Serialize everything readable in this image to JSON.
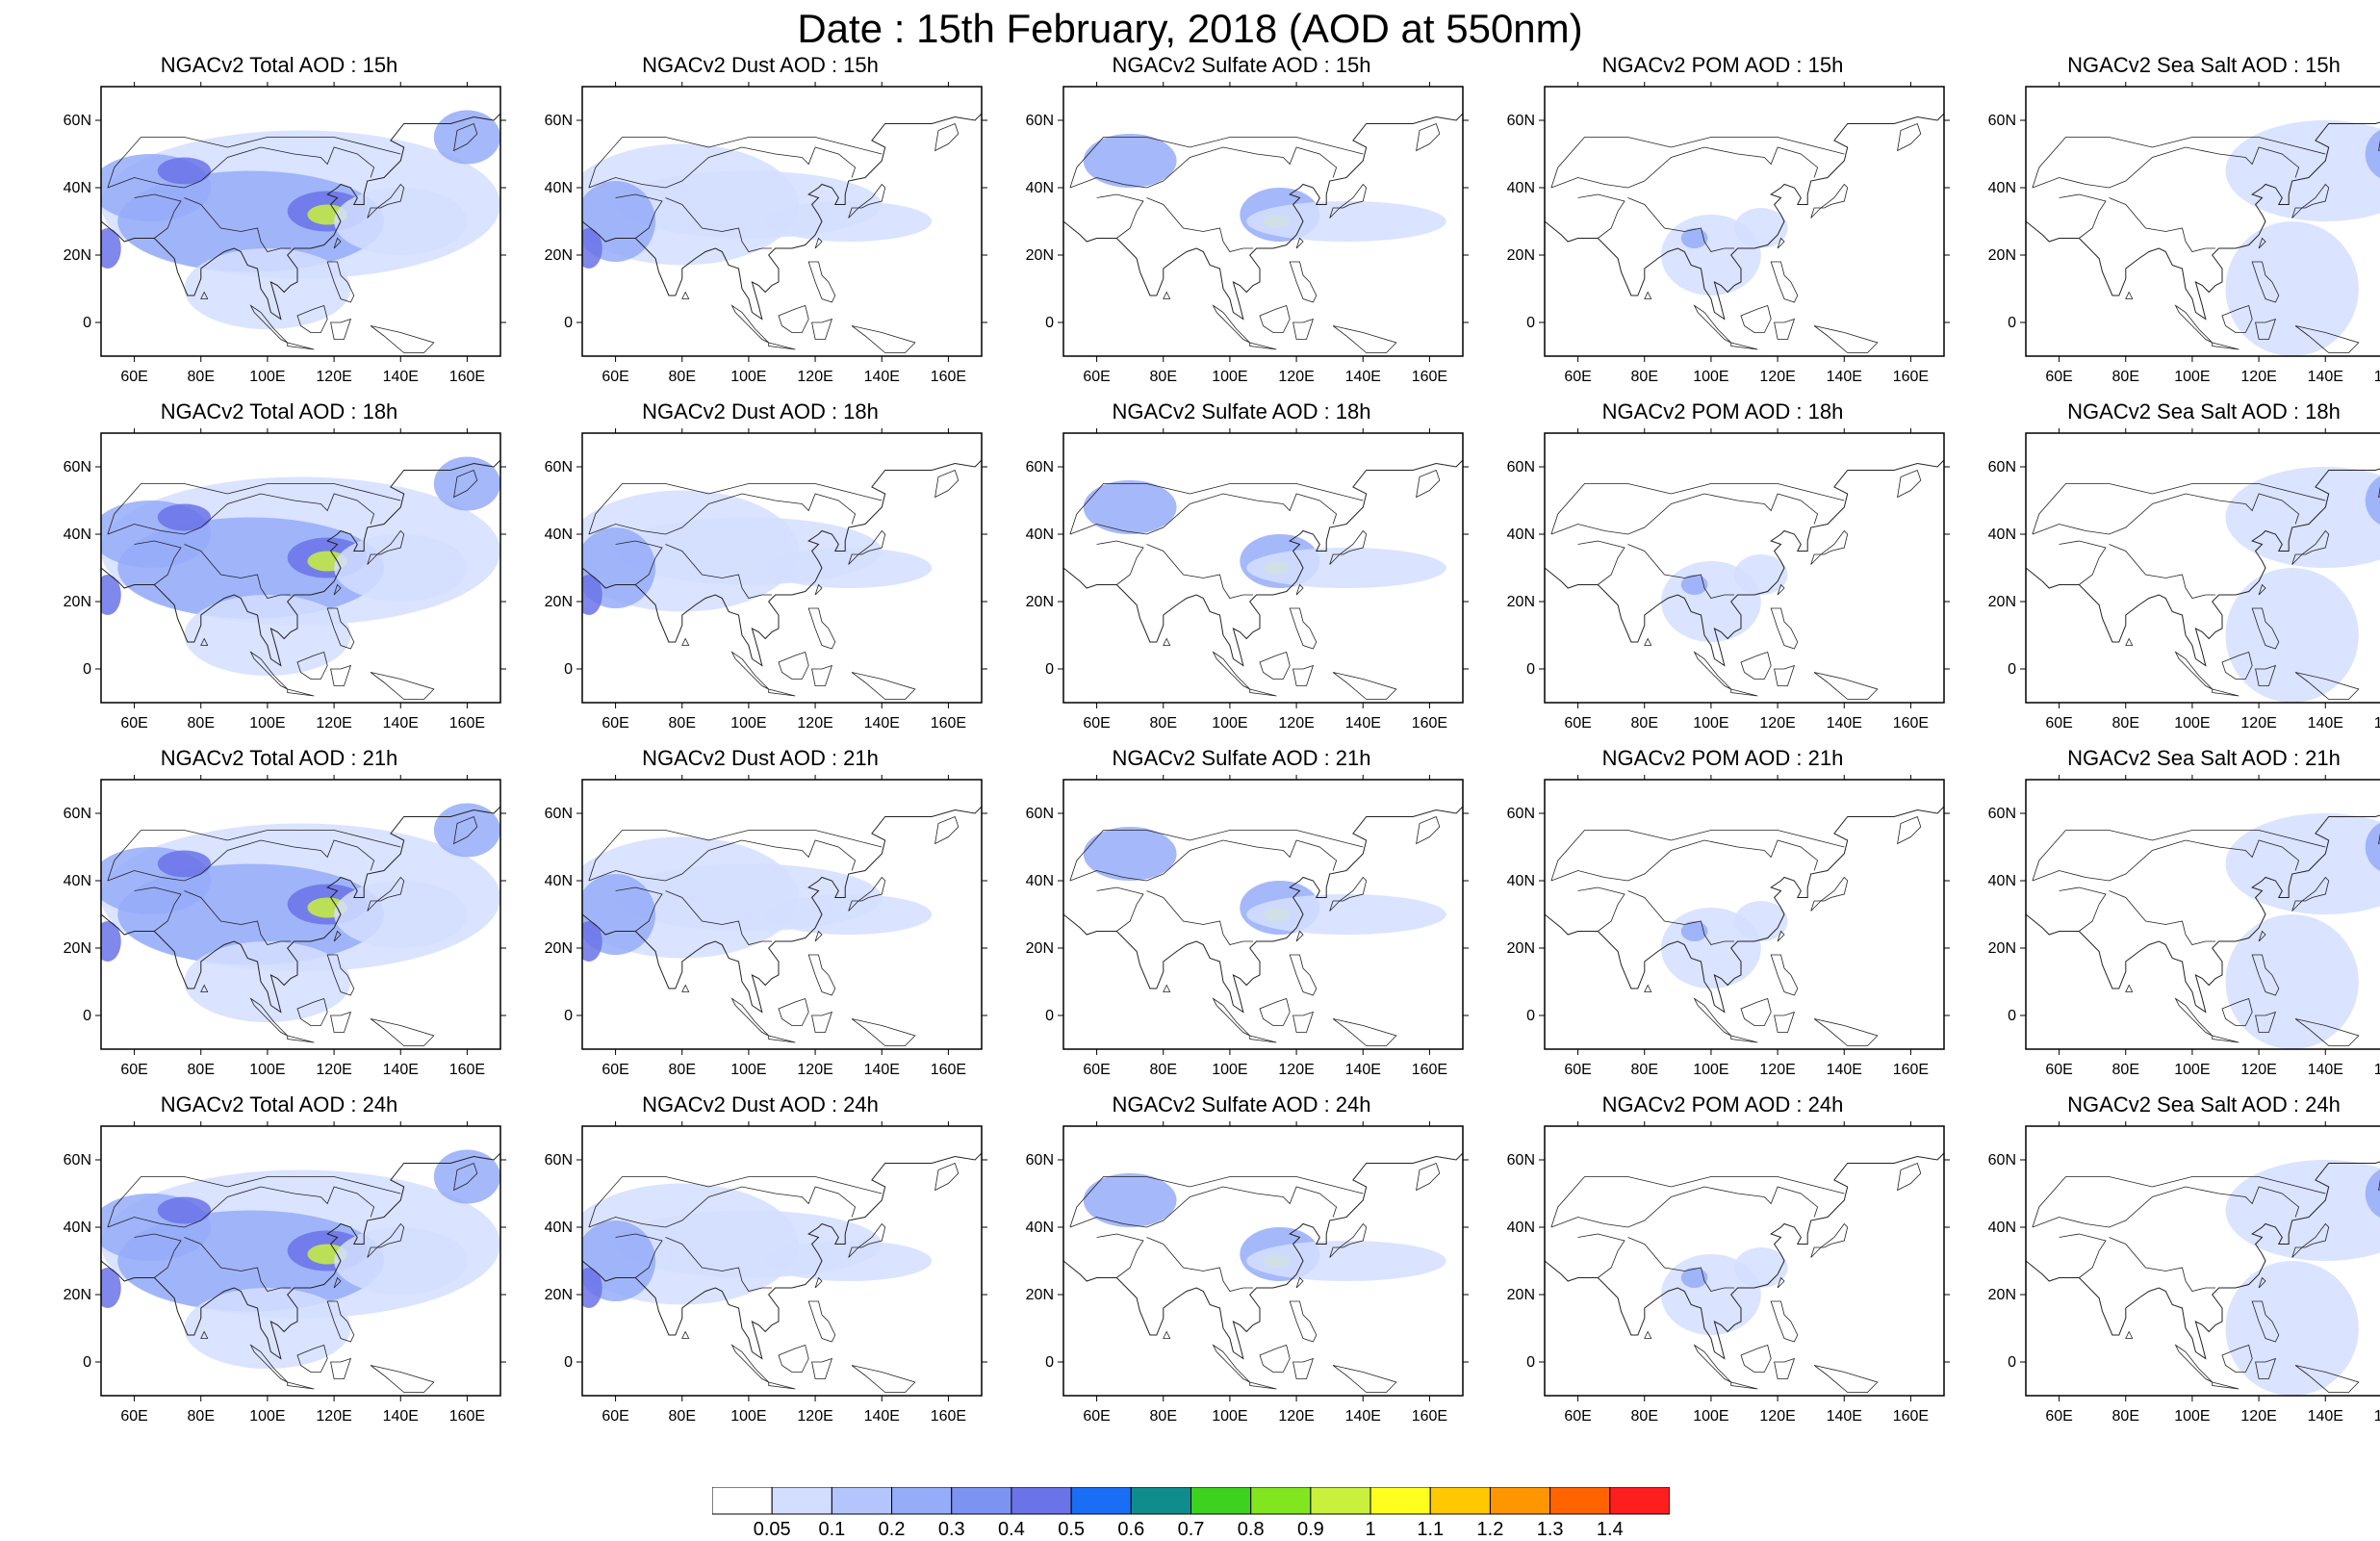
{
  "title": "Date : 15th February, 2018 (AOD at 550nm)",
  "species": [
    "Total",
    "Dust",
    "Sulfate",
    "POM",
    "Sea Salt"
  ],
  "times": [
    "15h",
    "18h",
    "21h",
    "24h"
  ],
  "panels": [
    [
      "NGACv2 Total AOD : 15h",
      "NGACv2 Dust AOD : 15h",
      "NGACv2 Sulfate AOD : 15h",
      "NGACv2 POM AOD : 15h",
      "NGACv2 Sea Salt AOD : 15h"
    ],
    [
      "NGACv2 Total AOD : 18h",
      "NGACv2 Dust AOD : 18h",
      "NGACv2 Sulfate AOD : 18h",
      "NGACv2 POM AOD : 18h",
      "NGACv2 Sea Salt AOD : 18h"
    ],
    [
      "NGACv2 Total AOD : 21h",
      "NGACv2 Dust AOD : 21h",
      "NGACv2 Sulfate AOD : 21h",
      "NGACv2 POM AOD : 21h",
      "NGACv2 Sea Salt AOD : 21h"
    ],
    [
      "NGACv2 Total AOD : 24h",
      "NGACv2 Dust AOD : 24h",
      "NGACv2 Sulfate AOD : 24h",
      "NGACv2 POM AOD : 24h",
      "NGACv2 Sea Salt  AOD : 24h"
    ]
  ],
  "axes": {
    "lon_ticks": [
      "60E",
      "80E",
      "100E",
      "120E",
      "140E",
      "160E"
    ],
    "lat_ticks": [
      "60N",
      "40N",
      "20N",
      "0"
    ],
    "lon_values": [
      60,
      80,
      100,
      120,
      140,
      160
    ],
    "lat_values": [
      60,
      40,
      20,
      0
    ],
    "lon_range": [
      50,
      170
    ],
    "lat_range": [
      -10,
      70
    ]
  },
  "colorbar": {
    "levels": [
      "0.05",
      "0.1",
      "0.2",
      "0.3",
      "0.4",
      "0.5",
      "0.6",
      "0.7",
      "0.8",
      "0.9",
      "1",
      "1.1",
      "1.2",
      "1.3",
      "1.4"
    ],
    "colors": [
      "#ffffff",
      "#d3deff",
      "#b3c5fc",
      "#95acf9",
      "#7d93f2",
      "#6a73e8",
      "#1a6ef5",
      "#0f8c8c",
      "#3cd21e",
      "#82e61e",
      "#c8f03c",
      "#ffff1e",
      "#ffc800",
      "#ff9600",
      "#ff6400",
      "#ff1e1e"
    ]
  },
  "legend_colors": {
    "land_outline": "#222222",
    "low": "#d3deff",
    "mid": "#95acf9",
    "high": "#6a73e8",
    "peak": "#c8f03c"
  }
}
